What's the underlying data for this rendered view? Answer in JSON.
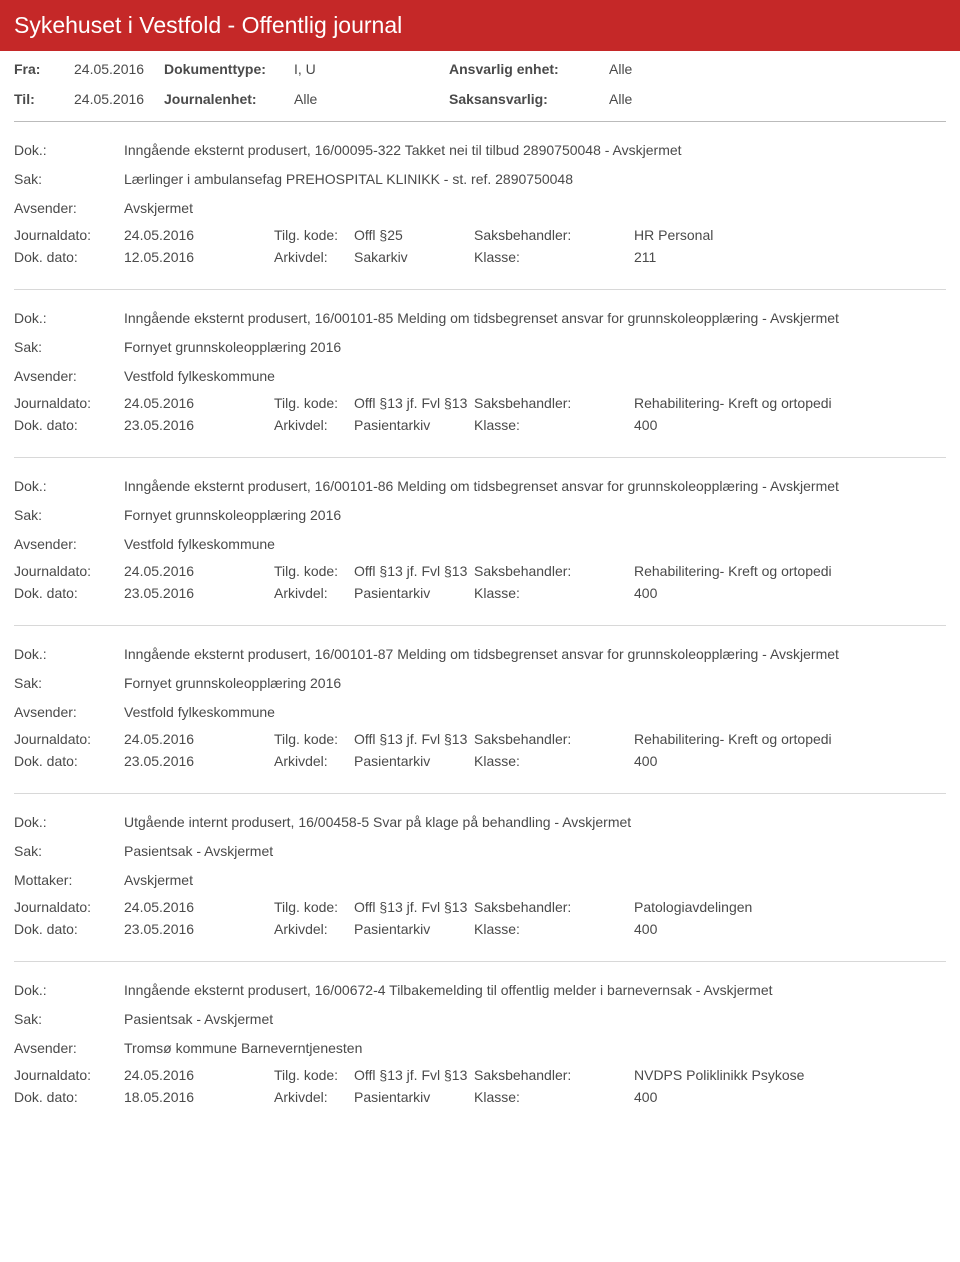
{
  "header": {
    "title": "Sykehuset i Vestfold - Offentlig journal"
  },
  "meta": {
    "fra_label": "Fra:",
    "fra": "24.05.2016",
    "til_label": "Til:",
    "til": "24.05.2016",
    "doktype_label": "Dokumenttype:",
    "doktype": "I, U",
    "journalenhet_label": "Journalenhet:",
    "journalenhet": "Alle",
    "ansvarlig_label": "Ansvarlig enhet:",
    "ansvarlig": "Alle",
    "saksansvarlig_label": "Saksansvarlig:",
    "saksansvarlig": "Alle"
  },
  "labels": {
    "dok": "Dok.:",
    "sak": "Sak:",
    "avsender": "Avsender:",
    "mottaker": "Mottaker:",
    "journaldato": "Journaldato:",
    "dokdato": "Dok. dato:",
    "tilgkode": "Tilg. kode:",
    "arkivdel": "Arkivdel:",
    "saksbehandler": "Saksbehandler:",
    "klasse": "Klasse:"
  },
  "entries": [
    {
      "dok": "Inngående eksternt produsert, 16/00095-322 Takket nei til tilbud 2890750048 - Avskjermet",
      "sak": "Lærlinger i ambulansefag PREHOSPITAL KLINIKK - st. ref. 2890750048",
      "party_label": "Avsender:",
      "party": "Avskjermet",
      "journaldato": "24.05.2016",
      "tilgkode": "Offl §25",
      "saksbehandler": "HR Personal",
      "dokdato": "12.05.2016",
      "arkivdel": "Sakarkiv",
      "klasse": "211"
    },
    {
      "dok": "Inngående eksternt produsert, 16/00101-85 Melding om tidsbegrenset ansvar for grunnskoleopplæring - Avskjermet",
      "sak": "Fornyet grunnskoleopplæring 2016",
      "party_label": "Avsender:",
      "party": "Vestfold fylkeskommune",
      "journaldato": "24.05.2016",
      "tilgkode": "Offl §13 jf. Fvl §13",
      "saksbehandler": "Rehabilitering- Kreft og ortopedi",
      "dokdato": "23.05.2016",
      "arkivdel": "Pasientarkiv",
      "klasse": "400"
    },
    {
      "dok": "Inngående eksternt produsert, 16/00101-86 Melding om tidsbegrenset ansvar for grunnskoleopplæring - Avskjermet",
      "sak": "Fornyet grunnskoleopplæring 2016",
      "party_label": "Avsender:",
      "party": "Vestfold fylkeskommune",
      "journaldato": "24.05.2016",
      "tilgkode": "Offl §13 jf. Fvl §13",
      "saksbehandler": "Rehabilitering- Kreft og ortopedi",
      "dokdato": "23.05.2016",
      "arkivdel": "Pasientarkiv",
      "klasse": "400"
    },
    {
      "dok": "Inngående eksternt produsert, 16/00101-87 Melding om tidsbegrenset ansvar for grunnskoleopplæring - Avskjermet",
      "sak": "Fornyet grunnskoleopplæring 2016",
      "party_label": "Avsender:",
      "party": "Vestfold fylkeskommune",
      "journaldato": "24.05.2016",
      "tilgkode": "Offl §13 jf. Fvl §13",
      "saksbehandler": "Rehabilitering- Kreft og ortopedi",
      "dokdato": "23.05.2016",
      "arkivdel": "Pasientarkiv",
      "klasse": "400"
    },
    {
      "dok": "Utgående internt produsert, 16/00458-5 Svar på klage på behandling - Avskjermet",
      "sak": "Pasientsak - Avskjermet",
      "party_label": "Mottaker:",
      "party": "Avskjermet",
      "journaldato": "24.05.2016",
      "tilgkode": "Offl §13 jf. Fvl §13",
      "saksbehandler": "Patologiavdelingen",
      "dokdato": "23.05.2016",
      "arkivdel": "Pasientarkiv",
      "klasse": "400"
    },
    {
      "dok": "Inngående eksternt produsert, 16/00672-4 Tilbakemelding til offentlig melder i barnevernsak - Avskjermet",
      "sak": "Pasientsak - Avskjermet",
      "party_label": "Avsender:",
      "party": "Tromsø kommune Barneverntjenesten",
      "journaldato": "24.05.2016",
      "tilgkode": "Offl §13 jf. Fvl §13",
      "saksbehandler": "NVDPS Poliklinikk Psykose",
      "dokdato": "18.05.2016",
      "arkivdel": "Pasientarkiv",
      "klasse": "400"
    }
  ]
}
